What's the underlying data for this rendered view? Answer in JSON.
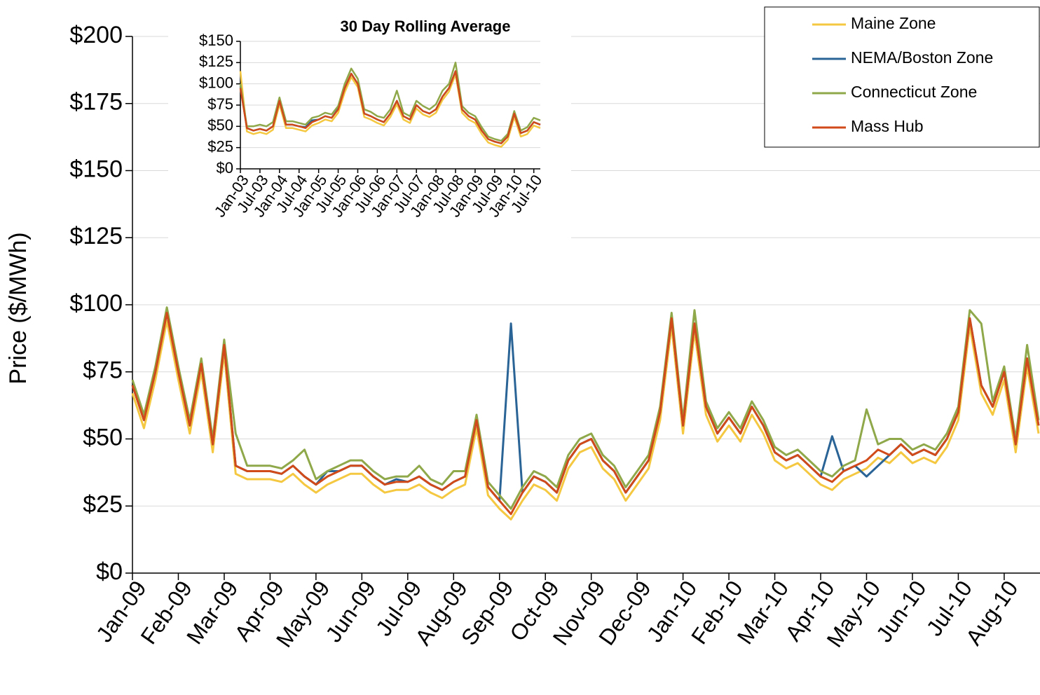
{
  "chart_data": [
    {
      "type": "line",
      "y_label": "Price ($/MWh)",
      "legend": "top-right",
      "grid": true,
      "categories": [
        "Jan-09",
        null,
        null,
        null,
        "Feb-09",
        null,
        null,
        null,
        "Mar-09",
        null,
        null,
        null,
        "Apr-09",
        null,
        null,
        null,
        "May-09",
        null,
        null,
        null,
        "Jun-09",
        null,
        null,
        null,
        "Jul-09",
        null,
        null,
        null,
        "Aug-09",
        null,
        null,
        null,
        "Sep-09",
        null,
        null,
        null,
        "Oct-09",
        null,
        null,
        null,
        "Nov-09",
        null,
        null,
        null,
        "Dec-09",
        null,
        null,
        null,
        "Jan-10",
        null,
        null,
        null,
        "Feb-10",
        null,
        null,
        null,
        "Mar-10",
        null,
        null,
        null,
        "Apr-10",
        null,
        null,
        null,
        "May-10",
        null,
        null,
        null,
        "Jun-10",
        null,
        null,
        null,
        "Jul-10",
        null,
        null,
        null,
        "Aug-10",
        null,
        null,
        null
      ],
      "ylim": [
        0,
        200
      ],
      "yticks": [
        {
          "value": 0,
          "label": "$0"
        },
        {
          "value": 25,
          "label": "$25"
        },
        {
          "value": 50,
          "label": "$50"
        },
        {
          "value": 75,
          "label": "$75"
        },
        {
          "value": 100,
          "label": "$100"
        },
        {
          "value": 125,
          "label": "$125"
        },
        {
          "value": 150,
          "label": "$150"
        },
        {
          "value": 175,
          "label": "$175"
        },
        {
          "value": 200,
          "label": "$200"
        }
      ],
      "series": [
        {
          "name": "Maine Zone",
          "color": "#f5c842",
          "values": [
            67,
            54,
            72,
            94,
            72,
            52,
            75,
            45,
            82,
            37,
            35,
            35,
            35,
            34,
            37,
            33,
            30,
            33,
            35,
            37,
            37,
            33,
            30,
            31,
            31,
            33,
            30,
            28,
            31,
            33,
            54,
            29,
            24,
            20,
            27,
            33,
            31,
            27,
            39,
            45,
            47,
            39,
            35,
            27,
            33,
            39,
            57,
            92,
            52,
            90,
            59,
            49,
            55,
            49,
            59,
            52,
            42,
            39,
            41,
            37,
            33,
            31,
            35,
            37,
            39,
            43,
            41,
            45,
            41,
            43,
            41,
            47,
            57,
            92,
            67,
            59,
            72,
            45,
            77,
            52
          ]
        },
        {
          "name": "NEMA/Boston Zone",
          "color": "#2a6496",
          "values": [
            70,
            57,
            75,
            97,
            75,
            55,
            78,
            48,
            85,
            40,
            38,
            38,
            38,
            37,
            40,
            36,
            33,
            38,
            38,
            40,
            40,
            36,
            33,
            35,
            34,
            36,
            33,
            31,
            34,
            36,
            57,
            32,
            27,
            93,
            30,
            36,
            34,
            30,
            42,
            48,
            50,
            42,
            38,
            30,
            36,
            42,
            60,
            95,
            55,
            93,
            62,
            52,
            58,
            52,
            62,
            55,
            45,
            42,
            44,
            40,
            36,
            51,
            38,
            40,
            36,
            40,
            44,
            48,
            44,
            46,
            44,
            50,
            60,
            95,
            70,
            62,
            75,
            48,
            80,
            55
          ]
        },
        {
          "name": "Connecticut Zone",
          "color": "#8fa84a",
          "values": [
            72,
            59,
            77,
            99,
            77,
            57,
            80,
            50,
            87,
            52,
            40,
            40,
            40,
            39,
            42,
            46,
            35,
            38,
            40,
            42,
            42,
            38,
            35,
            36,
            36,
            40,
            35,
            33,
            38,
            38,
            59,
            34,
            29,
            24,
            32,
            38,
            36,
            32,
            44,
            50,
            52,
            44,
            40,
            32,
            38,
            44,
            62,
            97,
            57,
            98,
            64,
            54,
            60,
            54,
            64,
            57,
            47,
            44,
            46,
            42,
            38,
            36,
            40,
            42,
            61,
            48,
            50,
            50,
            46,
            48,
            46,
            52,
            62,
            98,
            93,
            64,
            77,
            50,
            85,
            57
          ]
        },
        {
          "name": "Mass Hub",
          "color": "#d04a1a",
          "values": [
            70,
            57,
            75,
            97,
            75,
            55,
            78,
            48,
            85,
            40,
            38,
            38,
            38,
            37,
            40,
            36,
            33,
            36,
            38,
            40,
            40,
            36,
            33,
            34,
            34,
            36,
            33,
            31,
            34,
            36,
            57,
            32,
            27,
            22,
            30,
            36,
            34,
            30,
            42,
            48,
            50,
            42,
            38,
            30,
            36,
            42,
            60,
            95,
            55,
            93,
            62,
            52,
            58,
            52,
            62,
            55,
            45,
            42,
            44,
            40,
            36,
            34,
            38,
            40,
            42,
            46,
            44,
            48,
            44,
            46,
            44,
            50,
            60,
            95,
            70,
            62,
            75,
            48,
            80,
            55
          ]
        }
      ]
    },
    {
      "type": "line",
      "title": "30 Day Rolling Average",
      "grid": true,
      "categories": [
        "Jan-03",
        null,
        null,
        "Jul-03",
        null,
        null,
        "Jan-04",
        null,
        null,
        "Jul-04",
        null,
        null,
        "Jan-05",
        null,
        null,
        "Jul-05",
        null,
        null,
        "Jan-06",
        null,
        null,
        "Jul-06",
        null,
        null,
        "Jan-07",
        null,
        null,
        "Jul-07",
        null,
        null,
        "Jan-08",
        null,
        null,
        "Jul-08",
        null,
        null,
        "Jan-09",
        null,
        null,
        "Jul-09",
        null,
        null,
        "Jan-10",
        null,
        null,
        "Jul-10",
        null
      ],
      "ylim": [
        0,
        150
      ],
      "yticks": [
        {
          "value": 0,
          "label": "$0"
        },
        {
          "value": 25,
          "label": "$25"
        },
        {
          "value": 50,
          "label": "$50"
        },
        {
          "value": 75,
          "label": "$75"
        },
        {
          "value": 100,
          "label": "$100"
        },
        {
          "value": 125,
          "label": "$125"
        },
        {
          "value": 150,
          "label": "$150"
        }
      ],
      "series": [
        {
          "color": "#f5c842",
          "values": [
            115,
            44,
            41,
            43,
            41,
            46,
            76,
            48,
            48,
            46,
            44,
            51,
            54,
            58,
            56,
            66,
            90,
            108,
            96,
            61,
            58,
            54,
            51,
            61,
            76,
            58,
            54,
            71,
            64,
            61,
            66,
            81,
            91,
            111,
            66,
            58,
            54,
            41,
            31,
            28,
            26,
            34,
            61,
            38,
            41,
            51,
            48
          ]
        },
        {
          "color": "#2a6496",
          "values": [
            97,
            48,
            45,
            47,
            45,
            50,
            80,
            52,
            52,
            50,
            49,
            57,
            58,
            62,
            60,
            71,
            95,
            112,
            100,
            65,
            62,
            58,
            55,
            65,
            80,
            62,
            58,
            75,
            68,
            65,
            70,
            85,
            95,
            115,
            70,
            62,
            58,
            45,
            35,
            32,
            30,
            38,
            65,
            42,
            45,
            55,
            52
          ]
        },
        {
          "color": "#8fa84a",
          "values": [
            100,
            50,
            50,
            52,
            50,
            55,
            84,
            56,
            56,
            54,
            52,
            60,
            62,
            66,
            64,
            74,
            100,
            118,
            106,
            70,
            67,
            62,
            60,
            70,
            92,
            66,
            62,
            80,
            74,
            70,
            76,
            92,
            100,
            125,
            74,
            66,
            62,
            49,
            38,
            35,
            33,
            41,
            68,
            45,
            49,
            60,
            57
          ]
        },
        {
          "color": "#d04a1a",
          "values": [
            95,
            48,
            45,
            47,
            45,
            50,
            80,
            52,
            52,
            50,
            48,
            55,
            58,
            62,
            60,
            70,
            95,
            112,
            100,
            65,
            62,
            58,
            55,
            65,
            80,
            62,
            58,
            75,
            68,
            65,
            70,
            85,
            95,
            115,
            70,
            62,
            58,
            45,
            35,
            32,
            30,
            38,
            65,
            42,
            45,
            55,
            52
          ]
        }
      ]
    }
  ]
}
